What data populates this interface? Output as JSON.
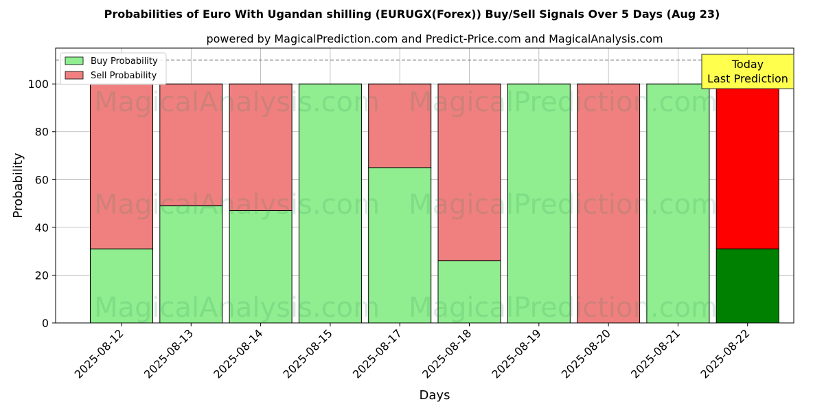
{
  "chart_data": {
    "type": "bar",
    "stacked": true,
    "title": "Probabilities of Euro With Ugandan shilling (EURUGX(Forex)) Buy/Sell Signals Over 5 Days (Aug 23)",
    "subtitle": "powered by MagicalPrediction.com and Predict-Price.com and MagicalAnalysis.com",
    "xlabel": "Days",
    "ylabel": "Probability",
    "ylim": [
      0,
      115
    ],
    "yticks": [
      0,
      20,
      40,
      60,
      80,
      100
    ],
    "grid": true,
    "legend_position": "top-left",
    "reference_line": 110,
    "categories": [
      "2025-08-12",
      "2025-08-13",
      "2025-08-14",
      "2025-08-15",
      "2025-08-17",
      "2025-08-18",
      "2025-08-19",
      "2025-08-20",
      "2025-08-21",
      "2025-08-22"
    ],
    "series": [
      {
        "name": "Buy Probability",
        "color": "#90ee90",
        "values": [
          31,
          49,
          47,
          100,
          65,
          26,
          100,
          0,
          100,
          31
        ]
      },
      {
        "name": "Sell Probability",
        "color": "#f08080",
        "values": [
          69,
          51,
          53,
          0,
          35,
          74,
          0,
          100,
          0,
          69
        ]
      }
    ],
    "highlight": {
      "index": 9,
      "buy_color": "#008000",
      "sell_color": "#ff0000"
    },
    "annotation": {
      "lines": [
        "Today",
        "Last Prediction"
      ],
      "background": "#ffff4d"
    },
    "watermarks": [
      "MagicalAnalysis.com",
      "MagicalPrediction.com"
    ]
  }
}
